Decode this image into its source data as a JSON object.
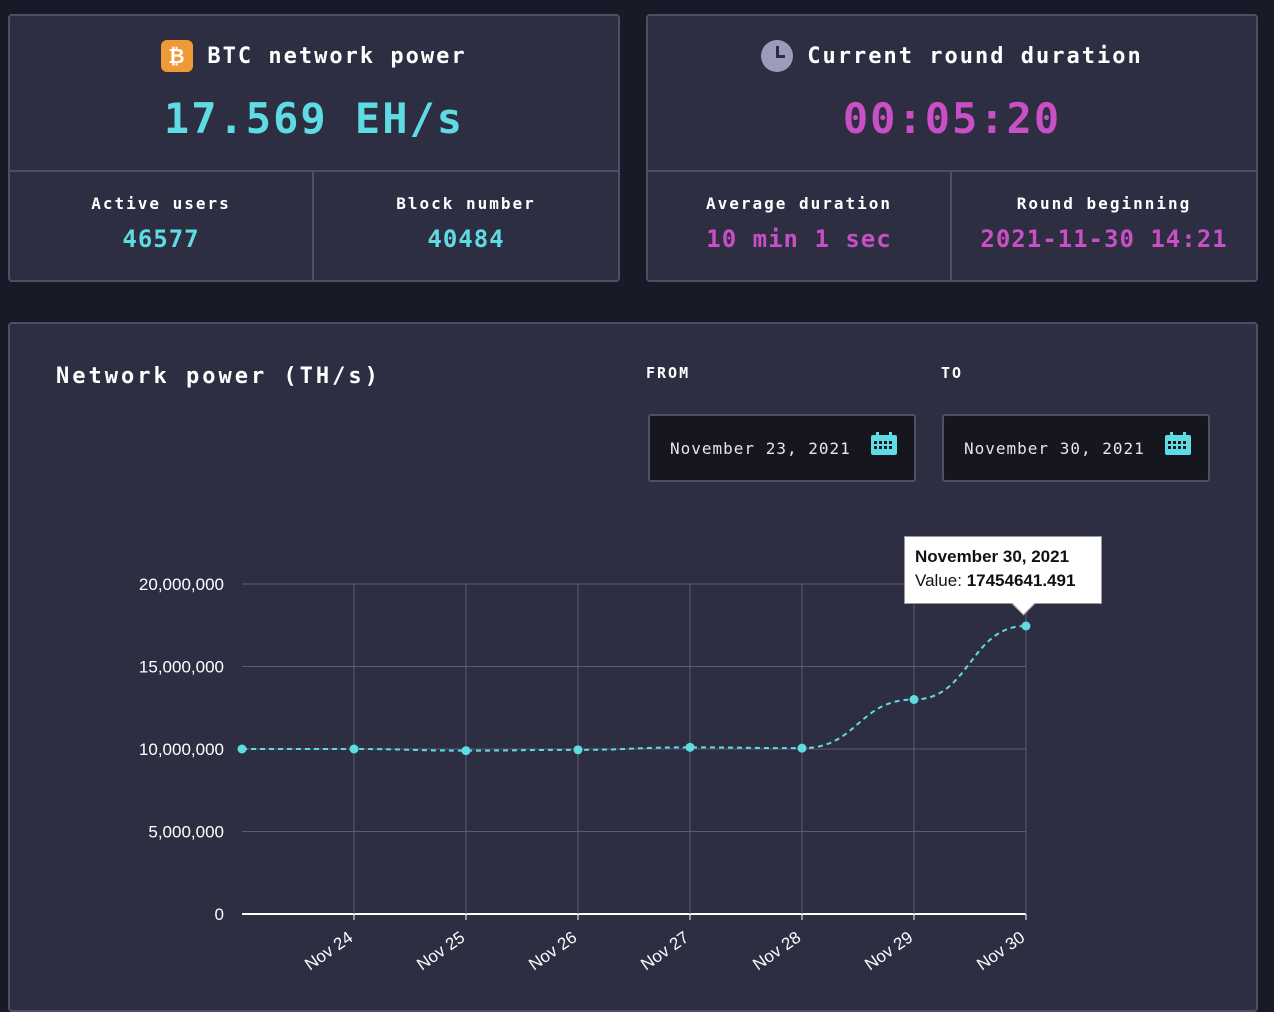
{
  "btc_card": {
    "icon": "bitcoin-icon",
    "icon_glyph": "₿",
    "title": "BTC network power",
    "value": "17.569 EH/s",
    "active_users_label": "Active users",
    "active_users": "46577",
    "block_number_label": "Block number",
    "block_number": "40484"
  },
  "round_card": {
    "icon": "clock-icon",
    "title": "Current round duration",
    "value": "00:05:20",
    "average_duration_label": "Average duration",
    "average_duration": "10 min 1 sec",
    "round_beginning_label": "Round beginning",
    "round_beginning": "2021-11-30 14:21"
  },
  "network_chart": {
    "title": "Network power (TH/s)",
    "from_label": "FROM",
    "from_value": "November 23, 2021",
    "to_label": "TO",
    "to_value": "November 30, 2021",
    "tooltip": {
      "date": "November 30, 2021",
      "value_label": "Value:",
      "value": "17454641.491"
    }
  },
  "colors": {
    "accent_cyan": "#5fdce3",
    "accent_pink": "#c84fc4",
    "bitcoin_orange": "#ef9a36",
    "card_bg": "#2d2e42",
    "page_bg": "#181a27"
  },
  "chart_data": {
    "type": "line",
    "x": [
      "2021-11-23",
      "2021-11-24",
      "2021-11-25",
      "2021-11-26",
      "2021-11-27",
      "2021-11-28",
      "2021-11-29",
      "2021-11-30"
    ],
    "x_tick_labels": [
      "",
      "Nov 24",
      "Nov 25",
      "Nov 26",
      "Nov 27",
      "Nov 28",
      "Nov 29",
      "Nov 30"
    ],
    "series": [
      {
        "values": [
          10000000,
          10000000,
          9900000,
          9950000,
          10100000,
          10050000,
          13000000,
          17454641.491
        ]
      }
    ],
    "ylim": [
      0,
      20000000
    ],
    "y_ticks": [
      0,
      5000000,
      10000000,
      15000000,
      20000000
    ],
    "y_tick_labels": [
      "0",
      "5,000,000",
      "10,000,000",
      "15,000,000",
      "20,000,000"
    ],
    "line_style": "dashed",
    "grid": true,
    "legend": "none"
  }
}
